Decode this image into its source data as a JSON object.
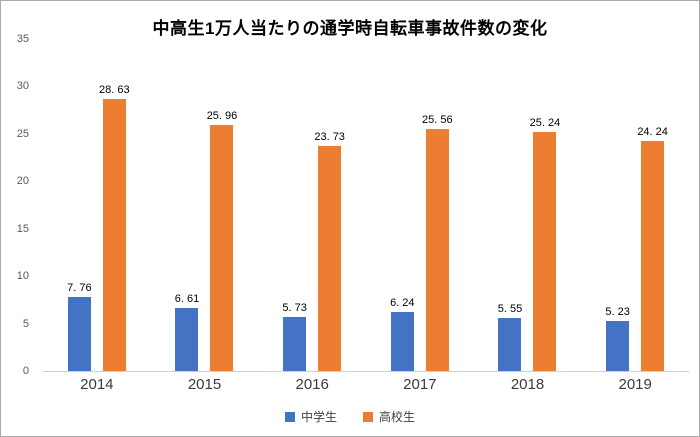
{
  "chart_data": {
    "type": "bar",
    "title": "中高生1万人当たりの通学時自転車事故件数の変化",
    "categories": [
      "2014",
      "2015",
      "2016",
      "2017",
      "2018",
      "2019"
    ],
    "series": [
      {
        "name": "中学生",
        "color": "#4472C4",
        "values": [
          7.76,
          6.61,
          5.73,
          6.24,
          5.55,
          5.23
        ],
        "labels": [
          "7. 76",
          "6. 61",
          "5. 73",
          "6. 24",
          "5. 55",
          "5. 23"
        ]
      },
      {
        "name": "高校生",
        "color": "#ED7D31",
        "values": [
          28.63,
          25.96,
          23.73,
          25.56,
          25.24,
          24.24
        ],
        "labels": [
          "28. 63",
          "25. 96",
          "23. 73",
          "25. 56",
          "25. 24",
          "24. 24"
        ]
      }
    ],
    "ylim": [
      0,
      35
    ],
    "yticks": [
      35,
      30,
      25,
      20,
      15,
      10,
      5,
      0
    ],
    "grid": false,
    "legend_position": "bottom",
    "axis_line_color": "#d0cece"
  }
}
